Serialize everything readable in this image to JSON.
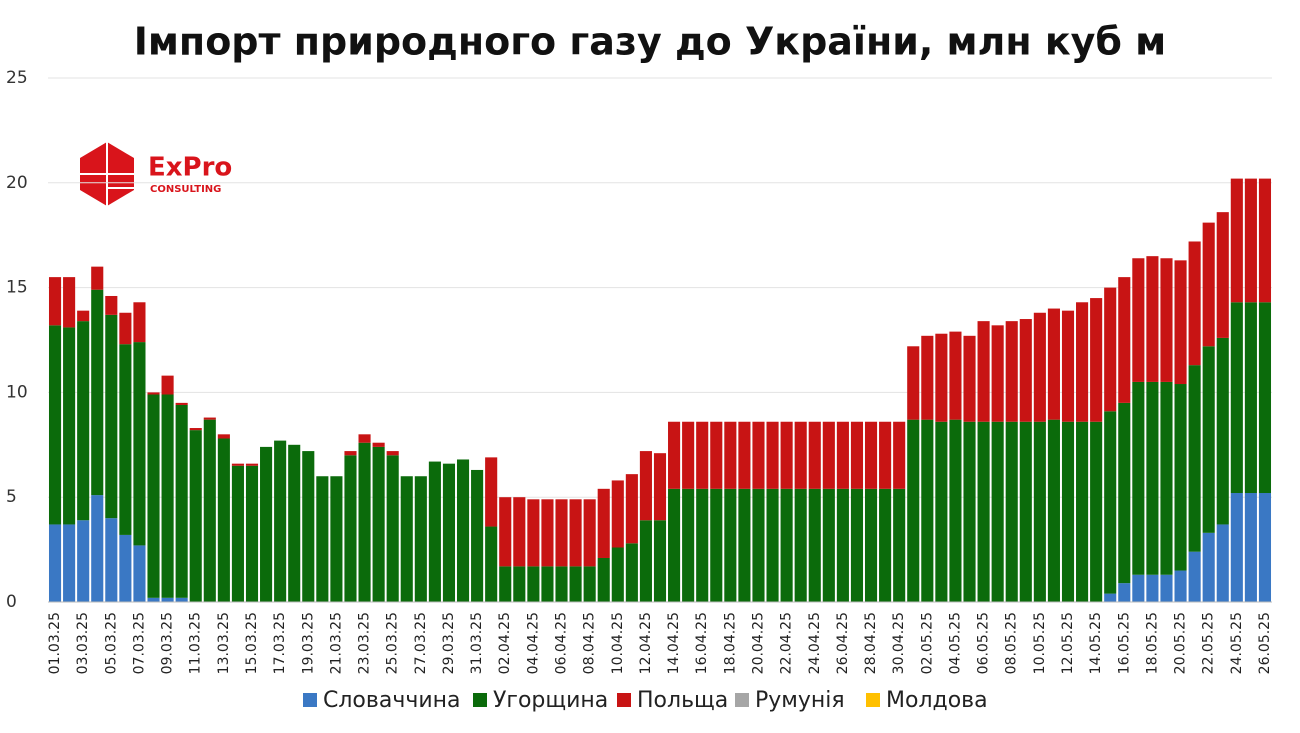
{
  "logo": {
    "name": "ExPro",
    "sub": "CONSULTING"
  },
  "chart_data": {
    "type": "stacked_bar",
    "title": "Імпорт природного газу до України, млн куб м",
    "categories": [
      "01.03.25",
      null,
      "03.03.25",
      null,
      "05.03.25",
      null,
      "07.03.25",
      null,
      "09.03.25",
      null,
      "11.03.25",
      null,
      "13.03.25",
      null,
      "15.03.25",
      null,
      "17.03.25",
      null,
      "19.03.25",
      null,
      "21.03.25",
      null,
      "23.03.25",
      null,
      "25.03.25",
      null,
      "27.03.25",
      null,
      "29.03.25",
      null,
      "31.03.25",
      null,
      "02.04.25",
      null,
      "04.04.25",
      null,
      "06.04.25",
      null,
      "08.04.25",
      null,
      "10.04.25",
      null,
      "12.04.25",
      null,
      "14.04.25",
      null,
      "16.04.25",
      null,
      "18.04.25",
      null,
      "20.04.25",
      null,
      "22.04.25",
      null,
      "24.04.25",
      null,
      "26.04.25",
      null,
      "28.04.25",
      null,
      "30.04.25",
      null,
      "02.05.25",
      null,
      "04.05.25",
      null,
      "06.05.25",
      null,
      "08.05.25",
      null,
      "10.05.25",
      null,
      "12.05.25",
      null,
      "14.05.25",
      null,
      "16.05.25",
      null,
      "18.05.25",
      null,
      "20.05.25",
      null,
      "22.05.25",
      null,
      "24.05.25",
      null,
      "26.05.25"
    ],
    "series": [
      {
        "name": "Словаччина",
        "color": "#3a78c4",
        "values": [
          3.7,
          3.7,
          3.9,
          5.1,
          4.0,
          3.2,
          2.7,
          0.2,
          0.2,
          0.2,
          0,
          0,
          0,
          0,
          0,
          0,
          0,
          0,
          0,
          0,
          0,
          0,
          0,
          0,
          0,
          0,
          0,
          0,
          0,
          0,
          0,
          0,
          0,
          0,
          0,
          0,
          0,
          0,
          0,
          0,
          0,
          0,
          0,
          0,
          0,
          0,
          0,
          0,
          0,
          0,
          0,
          0,
          0,
          0,
          0,
          0,
          0,
          0,
          0,
          0,
          0,
          0,
          0,
          0,
          0,
          0,
          0,
          0,
          0,
          0,
          0,
          0,
          0,
          0,
          0,
          0.4,
          0.9,
          1.3,
          1.3,
          1.3,
          1.5,
          2.4,
          3.3,
          3.7,
          5.2,
          5.2,
          5.2
        ]
      },
      {
        "name": "Угорщина",
        "color": "#0b6b0b",
        "values": [
          9.5,
          9.4,
          9.5,
          9.8,
          9.7,
          9.1,
          9.7,
          9.7,
          9.7,
          9.2,
          8.2,
          8.7,
          7.8,
          6.5,
          6.5,
          7.4,
          7.7,
          7.5,
          7.2,
          6.0,
          6.0,
          7.0,
          7.6,
          7.4,
          7.0,
          6.0,
          6.0,
          6.7,
          6.6,
          6.8,
          6.3,
          3.6,
          1.7,
          1.7,
          1.7,
          1.7,
          1.7,
          1.7,
          1.7,
          2.1,
          2.6,
          2.8,
          3.9,
          3.9,
          5.4,
          5.4,
          5.4,
          5.4,
          5.4,
          5.4,
          5.4,
          5.4,
          5.4,
          5.4,
          5.4,
          5.4,
          5.4,
          5.4,
          5.4,
          5.4,
          5.4,
          8.7,
          8.7,
          8.6,
          8.7,
          8.6,
          8.6,
          8.6,
          8.6,
          8.6,
          8.6,
          8.7,
          8.6,
          8.6,
          8.6,
          8.7,
          8.6,
          9.2,
          9.2,
          9.2,
          8.9,
          8.9,
          8.9,
          8.9,
          9.1,
          9.1,
          9.1
        ]
      },
      {
        "name": "Польща",
        "color": "#c81414",
        "values": [
          2.3,
          2.4,
          0.5,
          1.1,
          0.9,
          1.5,
          1.9,
          0.1,
          0.9,
          0.1,
          0.1,
          0.1,
          0.2,
          0.1,
          0.1,
          0,
          0,
          0,
          0,
          0,
          0,
          0.2,
          0.4,
          0.2,
          0.2,
          0,
          0,
          0,
          0,
          0,
          0,
          3.3,
          3.3,
          3.3,
          3.2,
          3.2,
          3.2,
          3.2,
          3.2,
          3.3,
          3.2,
          3.3,
          3.3,
          3.2,
          3.2,
          3.2,
          3.2,
          3.2,
          3.2,
          3.2,
          3.2,
          3.2,
          3.2,
          3.2,
          3.2,
          3.2,
          3.2,
          3.2,
          3.2,
          3.2,
          3.2,
          3.5,
          4.0,
          4.2,
          4.2,
          4.1,
          4.8,
          4.6,
          4.8,
          4.9,
          5.2,
          5.3,
          5.3,
          5.7,
          5.9,
          5.9,
          6.0,
          5.9,
          6.0,
          5.9,
          5.9,
          5.9,
          5.9,
          6.0,
          5.9,
          5.9,
          5.9
        ]
      },
      {
        "name": "Румунія",
        "color": "#a6a6a6",
        "values": [
          0,
          0,
          0,
          0,
          0,
          0,
          0,
          0,
          0,
          0,
          0,
          0,
          0,
          0,
          0,
          0,
          0,
          0,
          0,
          0,
          0,
          0,
          0,
          0,
          0,
          0,
          0,
          0,
          0,
          0,
          0,
          0,
          0,
          0,
          0,
          0,
          0,
          0,
          0,
          0,
          0,
          0,
          0,
          0,
          0,
          0,
          0,
          0,
          0,
          0,
          0,
          0,
          0,
          0,
          0,
          0,
          0,
          0,
          0,
          0,
          0,
          0,
          0,
          0,
          0,
          0,
          0,
          0,
          0,
          0,
          0,
          0,
          0,
          0,
          0,
          0,
          0,
          0,
          0,
          0,
          0,
          0,
          0,
          0,
          0,
          0,
          0
        ]
      },
      {
        "name": "Молдова",
        "color": "#ffc000",
        "values": [
          0,
          0,
          0,
          0,
          0,
          0,
          0,
          0,
          0,
          0,
          0,
          0,
          0,
          0,
          0,
          0,
          0,
          0,
          0,
          0,
          0,
          0,
          0,
          0,
          0,
          0,
          0,
          0,
          0,
          0,
          0,
          0,
          0,
          0,
          0,
          0,
          0,
          0,
          0,
          0,
          0,
          0,
          0,
          0,
          0,
          0,
          0,
          0,
          0,
          0,
          0,
          0,
          0,
          0,
          0,
          0,
          0,
          0,
          0,
          0,
          0,
          0,
          0,
          0,
          0,
          0,
          0,
          0,
          0,
          0,
          0,
          0,
          0,
          0,
          0,
          0,
          0,
          0,
          0,
          0,
          0,
          0,
          0,
          0,
          0,
          0,
          0
        ]
      }
    ],
    "ylim": [
      0,
      25
    ],
    "yticks": [
      0,
      5,
      10,
      15,
      20,
      25
    ],
    "grid": true,
    "legend": "bottom"
  }
}
